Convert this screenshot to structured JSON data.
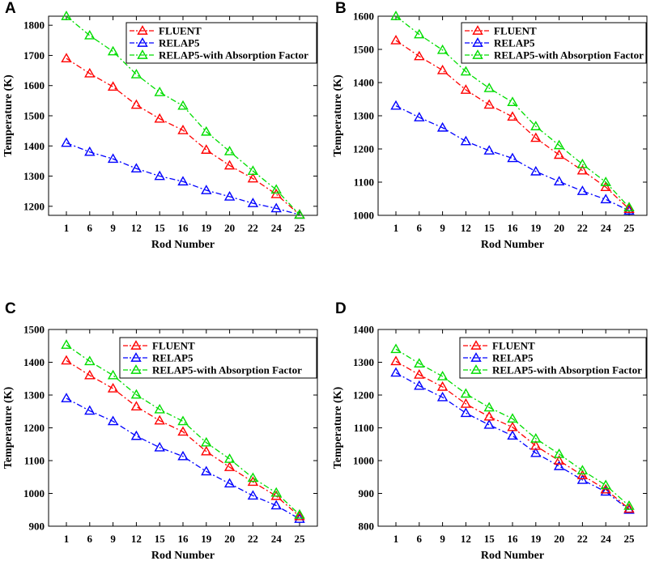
{
  "colors": {
    "fluent": "#ff0000",
    "relap5": "#0000ff",
    "relap5_absorption": "#00dd00"
  },
  "chart_data": [
    {
      "panel": "A",
      "type": "line",
      "xlabel": "Rod Number",
      "ylabel": "Temperature (K)",
      "categories": [
        "1",
        "6",
        "9",
        "12",
        "15",
        "16",
        "19",
        "20",
        "22",
        "24",
        "25"
      ],
      "ylim": [
        1170,
        1830
      ],
      "yticks": [
        1200,
        1300,
        1400,
        1500,
        1600,
        1700,
        1800
      ],
      "legend_position": "top-right",
      "series": [
        {
          "name": "FLUENT",
          "color_key": "fluent",
          "values": [
            1690,
            1640,
            1596,
            1536,
            1490,
            1452,
            1387,
            1335,
            1292,
            1240,
            1172
          ]
        },
        {
          "name": "RELAP5",
          "color_key": "relap5",
          "values": [
            1410,
            1380,
            1357,
            1325,
            1300,
            1282,
            1253,
            1232,
            1210,
            1193,
            1172
          ]
        },
        {
          "name": "RELAP5-with Absorption Factor",
          "color_key": "relap5_absorption",
          "values": [
            1830,
            1766,
            1713,
            1637,
            1578,
            1533,
            1447,
            1382,
            1317,
            1255,
            1172
          ]
        }
      ]
    },
    {
      "panel": "B",
      "type": "line",
      "xlabel": "Rod Number",
      "ylabel": "Temperature (K)",
      "categories": [
        "1",
        "6",
        "9",
        "12",
        "15",
        "16",
        "19",
        "20",
        "22",
        "24",
        "25"
      ],
      "ylim": [
        1000,
        1600
      ],
      "yticks": [
        1000,
        1100,
        1200,
        1300,
        1400,
        1500,
        1600
      ],
      "legend_position": "top-right",
      "series": [
        {
          "name": "FLUENT",
          "color_key": "fluent",
          "values": [
            1527,
            1479,
            1437,
            1378,
            1333,
            1297,
            1233,
            1182,
            1135,
            1085,
            1019
          ]
        },
        {
          "name": "RELAP5",
          "color_key": "relap5",
          "values": [
            1330,
            1295,
            1264,
            1223,
            1195,
            1172,
            1132,
            1102,
            1073,
            1048,
            1014
          ]
        },
        {
          "name": "RELAP5-with Absorption Factor",
          "color_key": "relap5_absorption",
          "values": [
            1600,
            1545,
            1498,
            1433,
            1383,
            1341,
            1268,
            1211,
            1154,
            1100,
            1024
          ]
        }
      ]
    },
    {
      "panel": "C",
      "type": "line",
      "xlabel": "Rod Number",
      "ylabel": "Temperature (K)",
      "categories": [
        "1",
        "6",
        "9",
        "12",
        "15",
        "16",
        "19",
        "20",
        "22",
        "24",
        "25"
      ],
      "ylim": [
        900,
        1500
      ],
      "yticks": [
        900,
        1000,
        1100,
        1200,
        1300,
        1400,
        1500
      ],
      "legend_position": "top-right",
      "series": [
        {
          "name": "FLUENT",
          "color_key": "fluent",
          "values": [
            1405,
            1360,
            1320,
            1265,
            1222,
            1188,
            1128,
            1080,
            1035,
            992,
            930
          ]
        },
        {
          "name": "RELAP5",
          "color_key": "relap5",
          "values": [
            1290,
            1252,
            1220,
            1175,
            1140,
            1113,
            1067,
            1030,
            993,
            963,
            922
          ]
        },
        {
          "name": "RELAP5-with Absorption Factor",
          "color_key": "relap5_absorption",
          "values": [
            1453,
            1403,
            1360,
            1301,
            1256,
            1220,
            1155,
            1105,
            1047,
            1002,
            935
          ]
        }
      ]
    },
    {
      "panel": "D",
      "type": "line",
      "xlabel": "Rod Number",
      "ylabel": "Temperature (K)",
      "categories": [
        "1",
        "6",
        "9",
        "12",
        "15",
        "16",
        "19",
        "20",
        "22",
        "24",
        "25"
      ],
      "ylim": [
        800,
        1400
      ],
      "yticks": [
        800,
        900,
        1000,
        1100,
        1200,
        1300,
        1400
      ],
      "legend_position": "top-right",
      "series": [
        {
          "name": "FLUENT",
          "color_key": "fluent",
          "values": [
            1303,
            1262,
            1225,
            1173,
            1134,
            1102,
            1045,
            1000,
            955,
            912,
            853
          ]
        },
        {
          "name": "RELAP5",
          "color_key": "relap5",
          "values": [
            1268,
            1228,
            1193,
            1145,
            1109,
            1076,
            1023,
            983,
            941,
            905,
            850
          ]
        },
        {
          "name": "RELAP5-with Absorption Factor",
          "color_key": "relap5_absorption",
          "values": [
            1340,
            1296,
            1257,
            1204,
            1162,
            1128,
            1067,
            1020,
            970,
            925,
            862
          ]
        }
      ]
    }
  ]
}
